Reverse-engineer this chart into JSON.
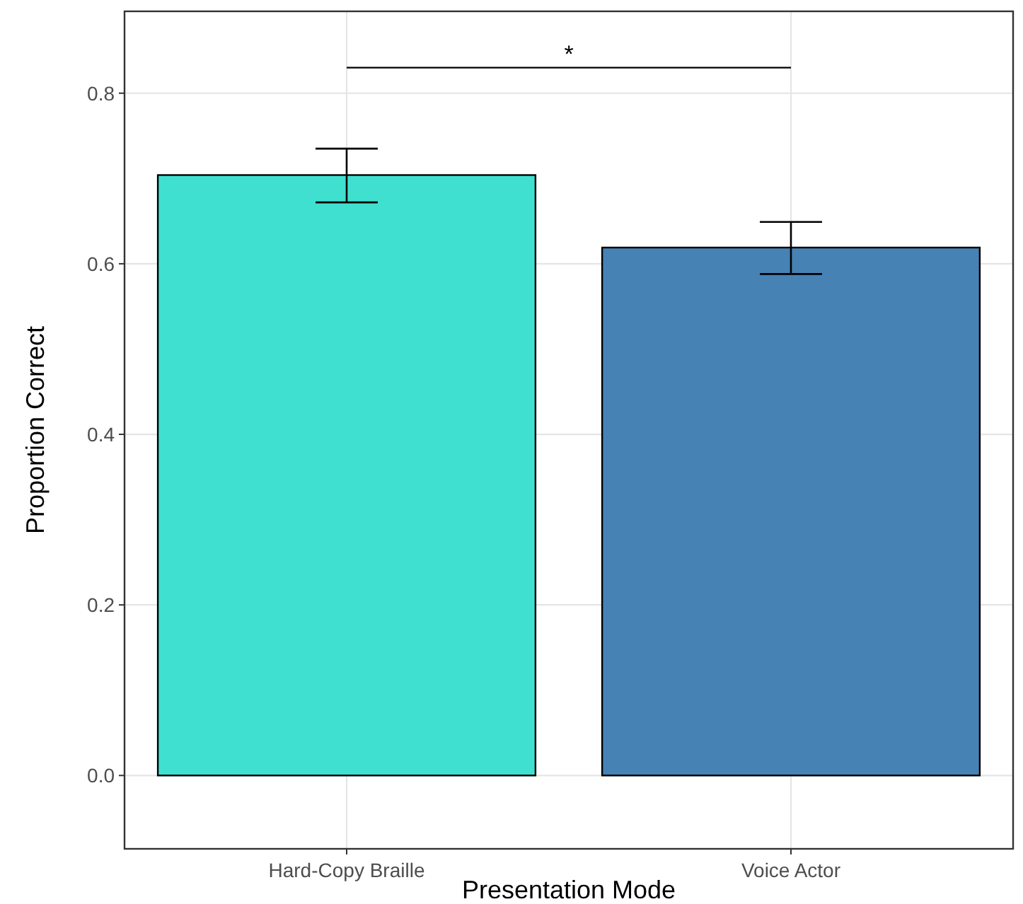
{
  "chart_data": {
    "type": "bar",
    "xlabel": "Presentation Mode",
    "ylabel": "Proportion Correct",
    "categories": [
      "Hard-Copy Braille",
      "Voice Actor"
    ],
    "values": [
      0.704,
      0.619
    ],
    "colors": [
      "#40e0d0",
      "#4682b4"
    ],
    "errors": [
      [
        0.672,
        0.735
      ],
      [
        0.588,
        0.649
      ]
    ],
    "ylim": [
      -0.086,
      0.896
    ],
    "yticks": [
      {
        "value": 0,
        "label": "0.0"
      },
      {
        "value": 0.2,
        "label": "0.2"
      },
      {
        "value": 0.4,
        "label": "0.4"
      },
      {
        "value": 0.6,
        "label": "0.6"
      },
      {
        "value": 0.8,
        "label": "0.8"
      }
    ],
    "grid": true,
    "annotations": [
      "*"
    ]
  }
}
